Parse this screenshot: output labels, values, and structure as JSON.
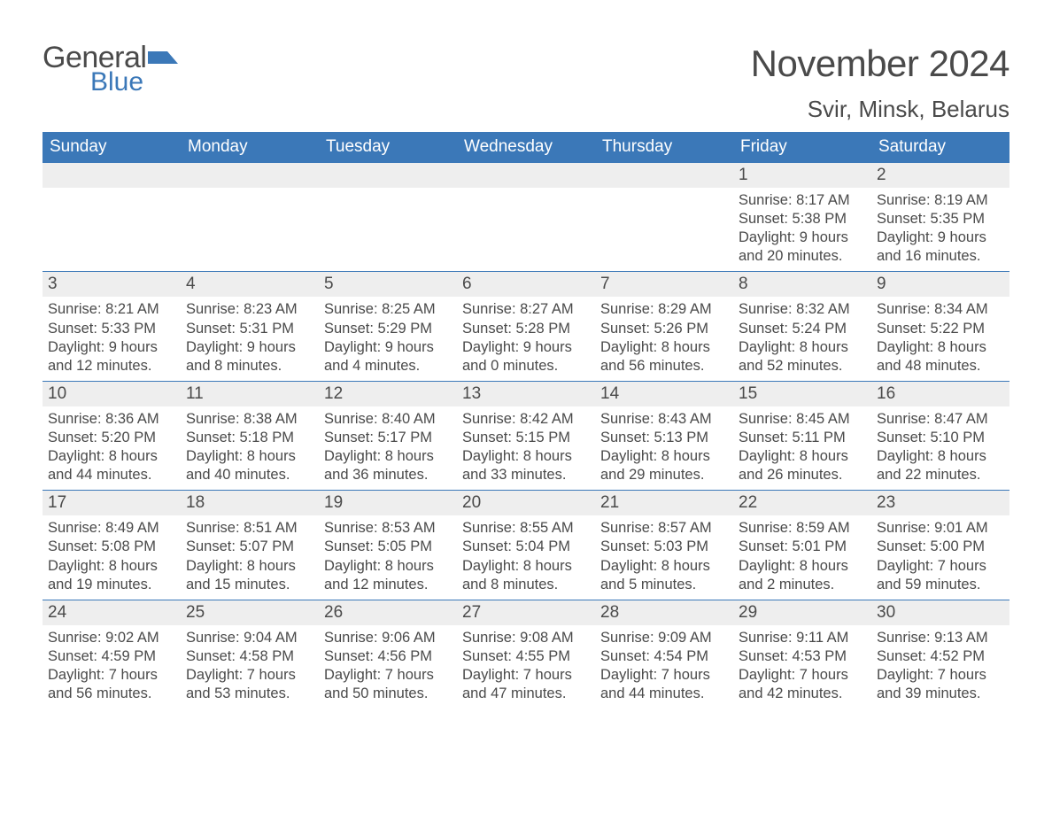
{
  "logo": {
    "word1": "General",
    "word2": "Blue"
  },
  "title": "November 2024",
  "location": "Svir, Minsk, Belarus",
  "colors": {
    "header_bg": "#3b78b8",
    "header_text": "#ffffff",
    "daynum_bg": "#eeeeee",
    "row_border": "#3b78b8",
    "text": "#4a4a4a",
    "page_bg": "#ffffff",
    "logo_blue": "#3b78b8"
  },
  "weekdays": [
    "Sunday",
    "Monday",
    "Tuesday",
    "Wednesday",
    "Thursday",
    "Friday",
    "Saturday"
  ],
  "layout": {
    "columns": 7,
    "rows": 5,
    "first_weekday_index_of_month": 5,
    "days_in_month": 30
  },
  "labels": {
    "sunrise": "Sunrise",
    "sunset": "Sunset",
    "daylight": "Daylight"
  },
  "days": [
    {
      "n": 1,
      "sunrise": "8:17 AM",
      "sunset": "5:38 PM",
      "daylight": "9 hours and 20 minutes."
    },
    {
      "n": 2,
      "sunrise": "8:19 AM",
      "sunset": "5:35 PM",
      "daylight": "9 hours and 16 minutes."
    },
    {
      "n": 3,
      "sunrise": "8:21 AM",
      "sunset": "5:33 PM",
      "daylight": "9 hours and 12 minutes."
    },
    {
      "n": 4,
      "sunrise": "8:23 AM",
      "sunset": "5:31 PM",
      "daylight": "9 hours and 8 minutes."
    },
    {
      "n": 5,
      "sunrise": "8:25 AM",
      "sunset": "5:29 PM",
      "daylight": "9 hours and 4 minutes."
    },
    {
      "n": 6,
      "sunrise": "8:27 AM",
      "sunset": "5:28 PM",
      "daylight": "9 hours and 0 minutes."
    },
    {
      "n": 7,
      "sunrise": "8:29 AM",
      "sunset": "5:26 PM",
      "daylight": "8 hours and 56 minutes."
    },
    {
      "n": 8,
      "sunrise": "8:32 AM",
      "sunset": "5:24 PM",
      "daylight": "8 hours and 52 minutes."
    },
    {
      "n": 9,
      "sunrise": "8:34 AM",
      "sunset": "5:22 PM",
      "daylight": "8 hours and 48 minutes."
    },
    {
      "n": 10,
      "sunrise": "8:36 AM",
      "sunset": "5:20 PM",
      "daylight": "8 hours and 44 minutes."
    },
    {
      "n": 11,
      "sunrise": "8:38 AM",
      "sunset": "5:18 PM",
      "daylight": "8 hours and 40 minutes."
    },
    {
      "n": 12,
      "sunrise": "8:40 AM",
      "sunset": "5:17 PM",
      "daylight": "8 hours and 36 minutes."
    },
    {
      "n": 13,
      "sunrise": "8:42 AM",
      "sunset": "5:15 PM",
      "daylight": "8 hours and 33 minutes."
    },
    {
      "n": 14,
      "sunrise": "8:43 AM",
      "sunset": "5:13 PM",
      "daylight": "8 hours and 29 minutes."
    },
    {
      "n": 15,
      "sunrise": "8:45 AM",
      "sunset": "5:11 PM",
      "daylight": "8 hours and 26 minutes."
    },
    {
      "n": 16,
      "sunrise": "8:47 AM",
      "sunset": "5:10 PM",
      "daylight": "8 hours and 22 minutes."
    },
    {
      "n": 17,
      "sunrise": "8:49 AM",
      "sunset": "5:08 PM",
      "daylight": "8 hours and 19 minutes."
    },
    {
      "n": 18,
      "sunrise": "8:51 AM",
      "sunset": "5:07 PM",
      "daylight": "8 hours and 15 minutes."
    },
    {
      "n": 19,
      "sunrise": "8:53 AM",
      "sunset": "5:05 PM",
      "daylight": "8 hours and 12 minutes."
    },
    {
      "n": 20,
      "sunrise": "8:55 AM",
      "sunset": "5:04 PM",
      "daylight": "8 hours and 8 minutes."
    },
    {
      "n": 21,
      "sunrise": "8:57 AM",
      "sunset": "5:03 PM",
      "daylight": "8 hours and 5 minutes."
    },
    {
      "n": 22,
      "sunrise": "8:59 AM",
      "sunset": "5:01 PM",
      "daylight": "8 hours and 2 minutes."
    },
    {
      "n": 23,
      "sunrise": "9:01 AM",
      "sunset": "5:00 PM",
      "daylight": "7 hours and 59 minutes."
    },
    {
      "n": 24,
      "sunrise": "9:02 AM",
      "sunset": "4:59 PM",
      "daylight": "7 hours and 56 minutes."
    },
    {
      "n": 25,
      "sunrise": "9:04 AM",
      "sunset": "4:58 PM",
      "daylight": "7 hours and 53 minutes."
    },
    {
      "n": 26,
      "sunrise": "9:06 AM",
      "sunset": "4:56 PM",
      "daylight": "7 hours and 50 minutes."
    },
    {
      "n": 27,
      "sunrise": "9:08 AM",
      "sunset": "4:55 PM",
      "daylight": "7 hours and 47 minutes."
    },
    {
      "n": 28,
      "sunrise": "9:09 AM",
      "sunset": "4:54 PM",
      "daylight": "7 hours and 44 minutes."
    },
    {
      "n": 29,
      "sunrise": "9:11 AM",
      "sunset": "4:53 PM",
      "daylight": "7 hours and 42 minutes."
    },
    {
      "n": 30,
      "sunrise": "9:13 AM",
      "sunset": "4:52 PM",
      "daylight": "7 hours and 39 minutes."
    }
  ]
}
